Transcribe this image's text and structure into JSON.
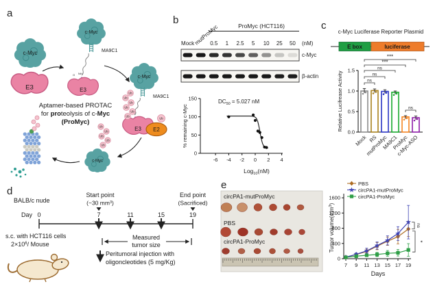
{
  "panel_a": {
    "label": "a",
    "cmyc": "c-Myc",
    "e3": "E3",
    "e2": "E2",
    "ub": "Ub",
    "nh": "NH",
    "o": "O",
    "aptamer": "MA9C1",
    "caption1": "Aptamer-based PROTAC",
    "caption2_seg1": "for ",
    "caption2_seg2": "pro",
    "caption2_seg3": "teolysis of c-",
    "caption2_seg4": "Myc",
    "caption3": "(ProMyc)"
  },
  "panel_b": {
    "label": "b",
    "group_header": "ProMyc (HCT116)",
    "lanes": [
      "Mock",
      "mutProMyc",
      "0.5",
      "1",
      "2.5",
      "5",
      "10",
      "25",
      "50"
    ],
    "unit": "(nM)",
    "blot_rows": [
      {
        "label": "c-Myc",
        "intensities": [
          1,
          1,
          0.92,
          0.88,
          0.78,
          0.68,
          0.45,
          0.22,
          0.12
        ]
      },
      {
        "label": "β-actin",
        "intensities": [
          1,
          1,
          1,
          1,
          1,
          1,
          1,
          0.98,
          0.98
        ]
      }
    ]
  },
  "panel_c": {
    "label": "c",
    "title": "c-Myc Luciferase Reporter Plasmid",
    "ebox": "E box",
    "luciferase": "luciferase",
    "ebox_color": "#1f9e43",
    "luciferase_color": "#ee7c2b"
  },
  "panel_d": {
    "label": "d",
    "mouse_model": "BALB/c nude",
    "day": "Day",
    "day0": "0",
    "days": [
      "7",
      "11",
      "15",
      "19"
    ],
    "start_title": "Start point",
    "start_sub_pre": "(~30 mm",
    "start_sub_sup": "3",
    "start_sub_post": ")",
    "end_title": "End point",
    "end_sub": "(Sacrificed)",
    "sc_line1": "s.c. with HCT116 cells",
    "sc_pre": "2×10",
    "sc_sup": "6",
    "sc_post": "/ Mouse",
    "measured1": "Measured",
    "measured2": "tumor size",
    "inj1": "Peritumoral injection with",
    "inj2": "oligoncleotides (5 mg/Kg)"
  },
  "panel_e": {
    "label": "e",
    "rows": [
      {
        "name": "circPA1-mutProMyc",
        "tumors": [
          [
            8,
            6.5,
            "#c08055"
          ],
          [
            7.5,
            6.5,
            "#c8906a"
          ],
          [
            6,
            5.5,
            "#b05238"
          ],
          [
            5.5,
            5,
            "#ad4a32"
          ],
          [
            5,
            4.5,
            "#a84630"
          ],
          [
            5,
            4,
            "#b05a40"
          ]
        ]
      },
      {
        "name": "PBS",
        "tumors": [
          [
            7.5,
            7,
            "#b24a36"
          ],
          [
            7.5,
            6,
            "#9e3326"
          ],
          [
            6,
            5,
            "#a84a34"
          ],
          [
            5.5,
            4.5,
            "#a03c2c"
          ],
          [
            5.5,
            4.5,
            "#a84434"
          ],
          [
            4.5,
            4,
            "#aa4838"
          ]
        ]
      },
      {
        "name": "circPA1-ProMyc",
        "tumors": [
          [
            5.5,
            4.5,
            "#9e3c2e"
          ],
          [
            5,
            4,
            "#b06048"
          ],
          [
            5,
            4,
            "#a84a34"
          ],
          [
            4.5,
            4,
            "#aa5038"
          ],
          [
            4.5,
            3.5,
            "#b05a44"
          ],
          [
            4,
            3.5,
            "#a85040"
          ]
        ]
      }
    ]
  },
  "chart_data": [
    {
      "id": "dose-response",
      "type": "scatter",
      "annotation": {
        "pre": "DC",
        "sub": "50",
        "post": " = 5.027 nM"
      },
      "xlabel": {
        "pre": "Log",
        "sub": "10",
        "post": "(nM)"
      },
      "ylabel": "% remaining c-Myc",
      "x": [
        -4,
        -0.3,
        0,
        0.4,
        0.7,
        1,
        1.4,
        1.7
      ],
      "y": [
        100,
        105,
        90,
        61,
        57,
        43,
        17,
        16
      ],
      "xticks": [
        -6,
        -4,
        -2,
        0,
        2,
        4
      ],
      "yticks": [
        0,
        50,
        100,
        150
      ],
      "xlim": [
        -6,
        4
      ],
      "ylim": [
        0,
        150
      ],
      "fit": {
        "top": 102,
        "bottom": 14,
        "logdc50": 0.72,
        "hill": 2
      }
    },
    {
      "id": "luciferase-activity",
      "type": "bar",
      "categories": [
        "Mock",
        "RS",
        "mutProMyc",
        "MA9C1",
        "ProMyc",
        "c-Myc-ASO"
      ],
      "values": [
        1.0,
        1.01,
        0.99,
        0.97,
        0.37,
        0.35
      ],
      "errors": [
        0.06,
        0.04,
        0.04,
        0.03,
        0.03,
        0.04
      ],
      "bar_colors": [
        "#8a8a8a",
        "#a8811c",
        "#2a35c4",
        "#17a82c",
        "#f5831f",
        "#8d1ca8"
      ],
      "ylabel": "Relative Lucifrease Activity",
      "yticks": [
        "0.0",
        "0.5",
        "1.0",
        "1.5"
      ],
      "ylim": [
        0,
        1.5
      ],
      "significance": [
        {
          "a": 0,
          "b": 1,
          "label": "ns"
        },
        {
          "a": 0,
          "b": 2,
          "label": "ns"
        },
        {
          "a": 0,
          "b": 3,
          "label": "ns"
        },
        {
          "a": 0,
          "b": 4,
          "label": "***"
        },
        {
          "a": 0,
          "b": 5,
          "label": "***"
        },
        {
          "a": 4,
          "b": 5,
          "label": "ns"
        }
      ]
    },
    {
      "id": "tumor-volume",
      "type": "line",
      "x": [
        7,
        9,
        11,
        13,
        15,
        17,
        19
      ],
      "xlabel": "Days",
      "ylabel": {
        "pre": "Tumor volume(mm",
        "sup": "3",
        "post": ")"
      },
      "yticks": [
        0,
        400,
        800,
        1200,
        1600
      ],
      "ylim": [
        0,
        1600
      ],
      "series": [
        {
          "name": "PBS",
          "color": "#ad6b21",
          "marker": "diamond",
          "values": [
            40,
            110,
            190,
            330,
            460,
            580,
            780
          ],
          "errors": [
            15,
            35,
            60,
            95,
            110,
            190,
            200
          ]
        },
        {
          "name": "circPA1-mutProMyc",
          "color": "#3c42b4",
          "marker": "star",
          "values": [
            40,
            115,
            205,
            345,
            480,
            660,
            960
          ],
          "errors": [
            15,
            35,
            70,
            95,
            120,
            180,
            440
          ]
        },
        {
          "name": "circPA1-ProMyc",
          "color": "#2e9e46",
          "marker": "square",
          "values": [
            35,
            65,
            90,
            110,
            140,
            155,
            230
          ],
          "errors": [
            10,
            25,
            35,
            55,
            75,
            85,
            165
          ]
        }
      ],
      "significance": [
        {
          "label": "ns"
        },
        {
          "label": "*"
        }
      ]
    }
  ]
}
